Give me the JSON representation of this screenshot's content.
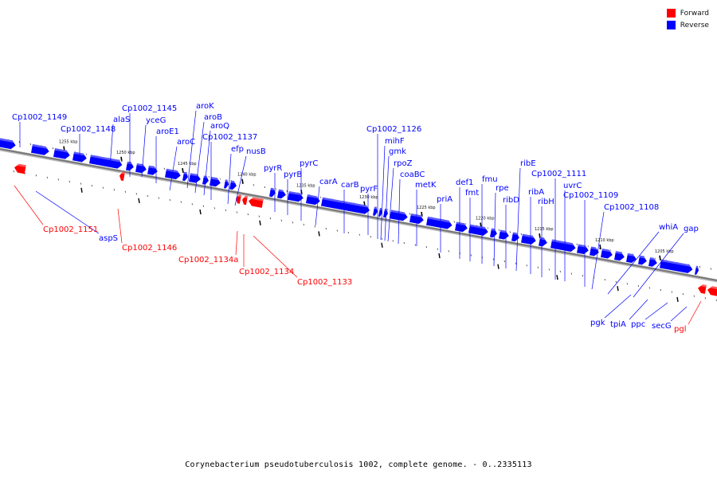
{
  "legend": {
    "forward_label": "Forward",
    "reverse_label": "Reverse",
    "forward_color": "#ff0000",
    "reverse_color": "#0000ff"
  },
  "caption": "Corynebacterium pseudotuberculosis 1002, complete genome. - 0..2335113",
  "colors": {
    "reverse": "#0000ff",
    "forward": "#ff0000",
    "backbone": "#777777"
  },
  "scale_labels": [
    "1255 kbp",
    "1250 kbp",
    "1245 kbp",
    "1240 kbp",
    "1235 kbp",
    "1230 kbp",
    "1225 kbp",
    "1220 kbp",
    "1215 kbp",
    "1210 kbp",
    "1205 kbp"
  ],
  "gene_labels": {
    "reverse": [
      "Cp1002_1149",
      "Cp1002_1148",
      "alaS",
      "Cp1002_1145",
      "yceG",
      "aroE1",
      "aroC",
      "aroK",
      "aroB",
      "aroQ",
      "Cp1002_1137",
      "efp",
      "nusB",
      "pyrR",
      "pyrB",
      "pyrC",
      "carA",
      "carB",
      "pyrF",
      "Cp1002_1126",
      "mihF",
      "gmk",
      "rpoZ",
      "coaBC",
      "metK",
      "priA",
      "def1",
      "fmt",
      "fmu",
      "rpe",
      "ribD",
      "ribE",
      "ribA",
      "ribH",
      "Cp1002_1111",
      "uvrC",
      "Cp1002_1109",
      "Cp1002_1108",
      "whiA",
      "gap",
      "aspS",
      "pgk",
      "tpiA",
      "ppc",
      "secG"
    ],
    "forward": [
      "Cp1002_1151",
      "Cp1002_1146",
      "Cp1002_1134a",
      "Cp1002_1134",
      "Cp1002_1133",
      "pgl"
    ]
  }
}
